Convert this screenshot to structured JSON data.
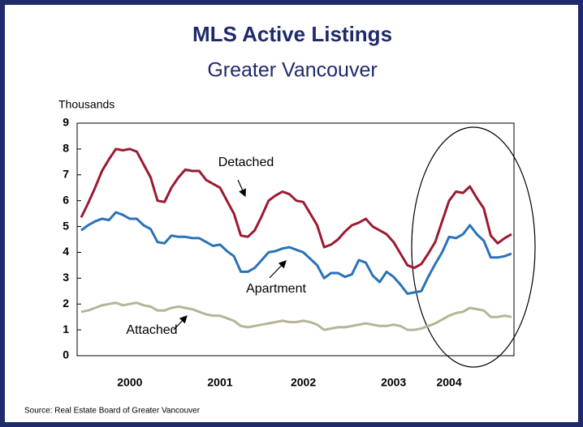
{
  "chart_data": {
    "type": "line",
    "title": "MLS Active Listings",
    "subtitle": "Greater Vancouver",
    "y_label": "Thousands",
    "source": "Source: Real Estate Board of Greater Vancouver",
    "categories": [
      null,
      null,
      null,
      null,
      null,
      null,
      null,
      "2000",
      null,
      null,
      null,
      null,
      null,
      null,
      null,
      null,
      null,
      null,
      null,
      null,
      "2001",
      null,
      null,
      null,
      null,
      null,
      null,
      null,
      null,
      null,
      null,
      null,
      "2002",
      null,
      null,
      null,
      null,
      null,
      null,
      null,
      null,
      null,
      null,
      null,
      null,
      "2003",
      null,
      null,
      null,
      null,
      null,
      null,
      null,
      "2004",
      null,
      null,
      null,
      null,
      null,
      null,
      null,
      null,
      null
    ],
    "ylim": [
      0,
      9
    ],
    "yticks": [
      0,
      1,
      2,
      3,
      4,
      5,
      6,
      7,
      8,
      9
    ],
    "grid": false,
    "series": [
      {
        "name": "Detached",
        "color": "#9b1b30",
        "values": [
          5.35,
          5.9,
          6.5,
          7.15,
          7.6,
          8.0,
          7.95,
          8.0,
          7.9,
          7.4,
          6.9,
          6.0,
          5.95,
          6.5,
          6.9,
          7.2,
          7.15,
          7.15,
          6.8,
          6.65,
          6.5,
          6.0,
          5.5,
          4.65,
          4.6,
          4.85,
          5.4,
          6.0,
          6.2,
          6.35,
          6.25,
          6.0,
          5.95,
          5.5,
          5.05,
          4.2,
          4.3,
          4.5,
          4.8,
          5.05,
          5.15,
          5.3,
          5.0,
          4.85,
          4.7,
          4.4,
          3.95,
          3.5,
          3.4,
          3.55,
          3.95,
          4.4,
          5.2,
          6.0,
          6.35,
          6.3,
          6.55,
          6.1,
          5.7,
          4.65,
          4.35,
          4.55,
          4.7
        ]
      },
      {
        "name": "Apartment",
        "color": "#2a72b8",
        "values": [
          4.85,
          5.05,
          5.2,
          5.3,
          5.25,
          5.55,
          5.45,
          5.3,
          5.3,
          5.05,
          4.9,
          4.4,
          4.35,
          4.65,
          4.6,
          4.6,
          4.55,
          4.55,
          4.4,
          4.25,
          4.3,
          4.05,
          3.85,
          3.25,
          3.25,
          3.4,
          3.7,
          4.0,
          4.05,
          4.15,
          4.2,
          4.1,
          4.0,
          3.75,
          3.5,
          3.0,
          3.2,
          3.2,
          3.05,
          3.15,
          3.7,
          3.6,
          3.1,
          2.85,
          3.25,
          3.05,
          2.75,
          2.4,
          2.45,
          2.5,
          3.05,
          3.55,
          4.0,
          4.6,
          4.55,
          4.7,
          5.05,
          4.7,
          4.45,
          3.8,
          3.8,
          3.85,
          3.95
        ]
      },
      {
        "name": "Attached",
        "color": "#b5b597",
        "values": [
          1.7,
          1.75,
          1.85,
          1.95,
          2.0,
          2.05,
          1.95,
          2.0,
          2.05,
          1.95,
          1.9,
          1.75,
          1.75,
          1.85,
          1.9,
          1.85,
          1.8,
          1.7,
          1.6,
          1.55,
          1.55,
          1.45,
          1.35,
          1.15,
          1.1,
          1.15,
          1.2,
          1.25,
          1.3,
          1.35,
          1.3,
          1.3,
          1.35,
          1.3,
          1.2,
          1.0,
          1.05,
          1.1,
          1.1,
          1.15,
          1.2,
          1.25,
          1.2,
          1.15,
          1.15,
          1.2,
          1.15,
          1.0,
          1.0,
          1.05,
          1.15,
          1.25,
          1.4,
          1.55,
          1.65,
          1.7,
          1.85,
          1.8,
          1.75,
          1.5,
          1.5,
          1.55,
          1.5
        ]
      }
    ]
  }
}
